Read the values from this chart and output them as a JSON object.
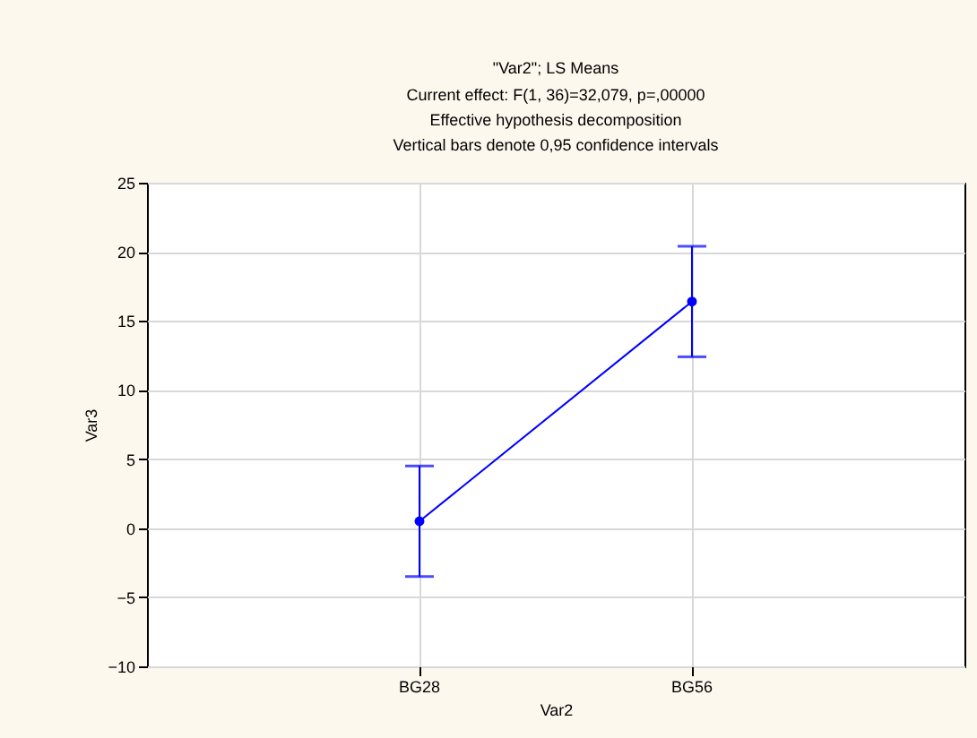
{
  "chart_data": {
    "type": "line",
    "title": "\"Var2\"; LS Means",
    "subtitle": "Current effect: F(1, 36)=32,079, p=,00000\nEffective hypothesis decomposition\nVertical bars denote 0,95 confidence intervals",
    "xlabel": "Var2",
    "ylabel": "Var3",
    "categories": [
      "BG28",
      "BG56"
    ],
    "series": [
      {
        "color": "#0000ff",
        "values": [
          0.5,
          16.4
        ],
        "errors": [
          4,
          4
        ]
      }
    ],
    "ylim": [
      -10,
      25
    ],
    "yticks": [
      -10,
      -5,
      0,
      5,
      10,
      15,
      20,
      25
    ],
    "grid": true,
    "marker": "circle",
    "line_style": "solid"
  }
}
